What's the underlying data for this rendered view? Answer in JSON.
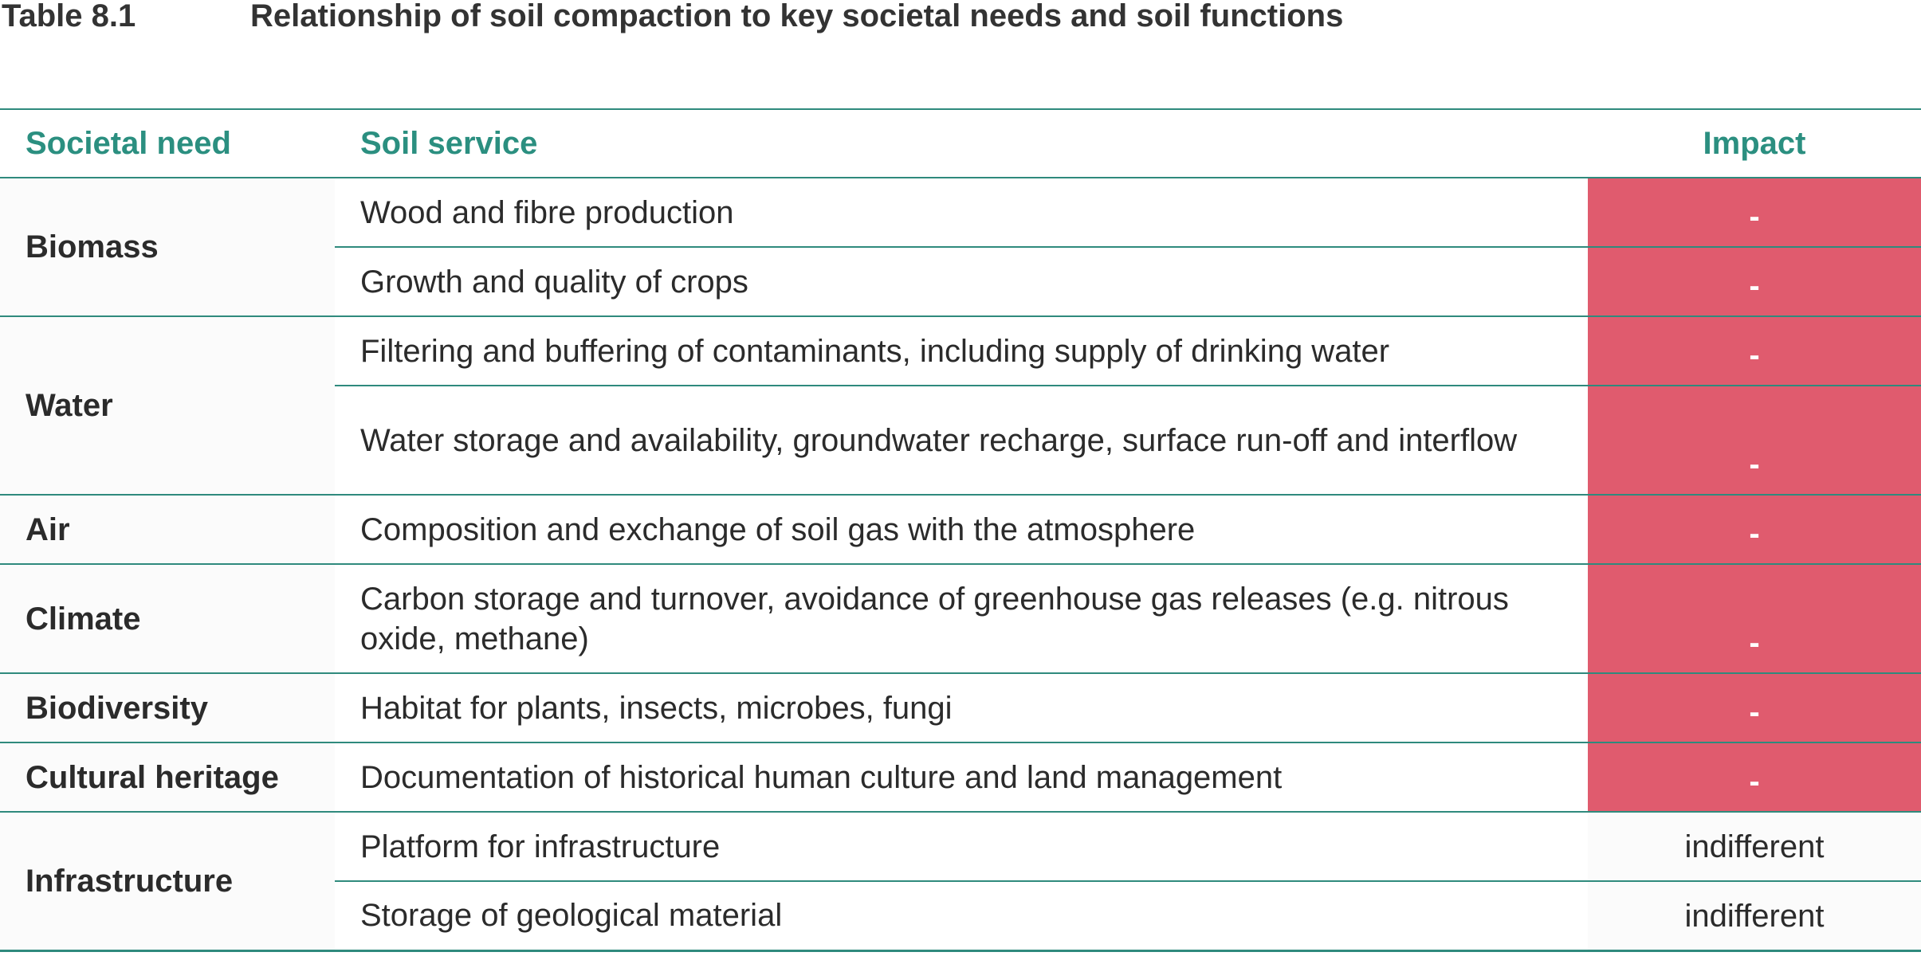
{
  "caption": {
    "number": "Table 8.1",
    "title": "Relationship of soil compaction to key societal needs and soil functions"
  },
  "table": {
    "headers": [
      "Societal need",
      "Soil service",
      "Impact"
    ],
    "rows": [
      {
        "need": "Biomass",
        "service": "Wood and fibre production",
        "impact": "-"
      },
      {
        "need": "",
        "service": "Growth and quality of crops",
        "impact": "-"
      },
      {
        "need": "Water",
        "service": "Filtering and buffering of contaminants, including supply of drinking water",
        "impact": "-"
      },
      {
        "need": "",
        "service": "Water storage and availability, groundwater recharge, surface run-off and interflow",
        "impact": "-"
      },
      {
        "need": "Air",
        "service": "Composition and exchange of soil gas with the atmosphere",
        "impact": "-"
      },
      {
        "need": "Climate",
        "service": "Carbon storage and turnover, avoidance of greenhouse gas releases (e.g. nitrous oxide, methane)",
        "impact": "-"
      },
      {
        "need": "Biodiversity",
        "service": "Habitat for plants, insects, microbes, fungi",
        "impact": "-"
      },
      {
        "need": "Cultural heritage",
        "service": "Documentation of historical human culture and land management",
        "impact": "-"
      },
      {
        "need": "Infrastructure",
        "service": "Platform for infrastructure",
        "impact": "indifferent"
      },
      {
        "need": "",
        "service": "Storage of geological material",
        "impact": "indifferent"
      }
    ]
  },
  "colors": {
    "accent": "#2b8f80",
    "negative_impact": "#e05b6e"
  }
}
